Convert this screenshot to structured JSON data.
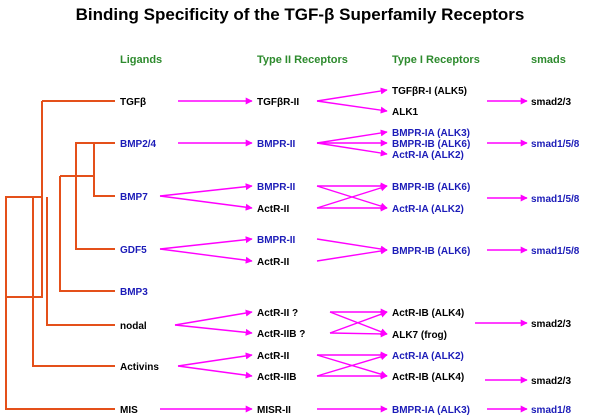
{
  "title": "Binding Specificity of the TGF-β Superfamily Receptors",
  "headers": {
    "ligands": "Ligands",
    "type2": "Type II  Receptors",
    "type1": "Type I Receptors",
    "smads": "smads"
  },
  "colors": {
    "black": "#000000",
    "blue": "#1c1cb8",
    "green": "#2e8b2e",
    "tree": "#e4501a",
    "arrow": "#ff00ff"
  },
  "ligands": [
    "TGFβ",
    "BMP2/4",
    "BMP7",
    "GDF5",
    "BMP3",
    "nodal",
    "Activins",
    "MIS"
  ],
  "type2": [
    "TGFβR-II",
    "BMPR-II",
    "BMPR-II",
    "ActR-II",
    "BMPR-II",
    "ActR-II",
    "ActR-II  ?",
    "ActR-IIB ?",
    "ActR-II",
    "ActR-IIB",
    "MISR-II"
  ],
  "type1": [
    "TGFβR-I   (ALK5)",
    "ALK1",
    "BMPR-IA   (ALK3)",
    "BMPR-IB   (ALK6)",
    "ActR-IA   (ALK2)",
    "BMPR-IB   (ALK6)",
    "ActR-IA   (ALK2)",
    "BMPR-IB   (ALK6)",
    "ActR-IB   (ALK4)",
    "ALK7 (frog)",
    "ActR-IA   (ALK2)",
    "ActR-IB   (ALK4)",
    "BMPR-IA   (ALK3)"
  ],
  "smads": [
    "smad2/3",
    "smad1/5/8",
    "smad1/5/8",
    "smad1/5/8",
    "smad2/3",
    "smad2/3",
    "smad1/8"
  ]
}
